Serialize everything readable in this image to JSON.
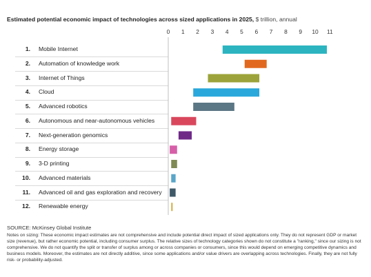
{
  "title": "Estimated potential economic impact of technologies across sized applications in 2025,",
  "title_unit": "$ trillion, annual",
  "source": "SOURCE: McKinsey Global Institute",
  "notes": "Notes on sizing: These economic impact estimates are not comprehensive and include potential direct impact of sized applications only. They do not represent GDP or market size (revenue), but rather economic potential, including consumer surplus. The relative sizes of technology categories shown do not constitute a \"ranking,\" since our sizing is not comprehensive. We do not quantify the split or transfer of surplus among or across companies or consumers, since this would depend on emerging competitive dynamics and business models. Moreover, the estimates are not directly additive, since some applications and/or value drivers are overlapping across technologies. Finally, they are not fully risk- or probability-adjusted.",
  "chart_data": {
    "type": "bar",
    "orientation": "horizontal-range",
    "title": "Estimated potential economic impact of technologies across sized applications in 2025, $ trillion, annual",
    "xlim": [
      0,
      11
    ],
    "xticks": [
      "0",
      "1",
      "2",
      "3",
      "4",
      "5",
      "6",
      "7",
      "8",
      "9",
      "10",
      "11"
    ],
    "grid": false,
    "categories": [
      {
        "rank": "1.",
        "label": "Mobile Internet",
        "low": 3.7,
        "high": 10.8,
        "color": "#2cb5c0"
      },
      {
        "rank": "2.",
        "label": "Automation of knowledge work",
        "low": 5.2,
        "high": 6.7,
        "color": "#e0691f"
      },
      {
        "rank": "3.",
        "label": "Internet of Things",
        "low": 2.7,
        "high": 6.2,
        "color": "#9ca33a"
      },
      {
        "rank": "4.",
        "label": "Cloud",
        "low": 1.7,
        "high": 6.2,
        "color": "#2aa8db"
      },
      {
        "rank": "5.",
        "label": "Advanced robotics",
        "low": 1.7,
        "high": 4.5,
        "color": "#5b7684"
      },
      {
        "rank": "6.",
        "label": "Autonomous and near-autonomous vehicles",
        "low": 0.2,
        "high": 1.9,
        "color": "#d9475d"
      },
      {
        "rank": "7.",
        "label": "Next-generation genomics",
        "low": 0.7,
        "high": 1.6,
        "color": "#6f2a88"
      },
      {
        "rank": "8.",
        "label": "Energy storage",
        "low": 0.1,
        "high": 0.6,
        "color": "#d65fa8"
      },
      {
        "rank": "9.",
        "label": "3-D printing",
        "low": 0.2,
        "high": 0.6,
        "color": "#7f8a54"
      },
      {
        "rank": "10.",
        "label": "Advanced materials",
        "low": 0.2,
        "high": 0.5,
        "color": "#5aa6c8"
      },
      {
        "rank": "11.",
        "label": "Advanced oil and gas exploration and recovery",
        "low": 0.1,
        "high": 0.5,
        "color": "#3f5968"
      },
      {
        "rank": "12.",
        "label": "Renewable energy",
        "low": 0.2,
        "high": 0.3,
        "color": "#d4b04a"
      }
    ]
  }
}
